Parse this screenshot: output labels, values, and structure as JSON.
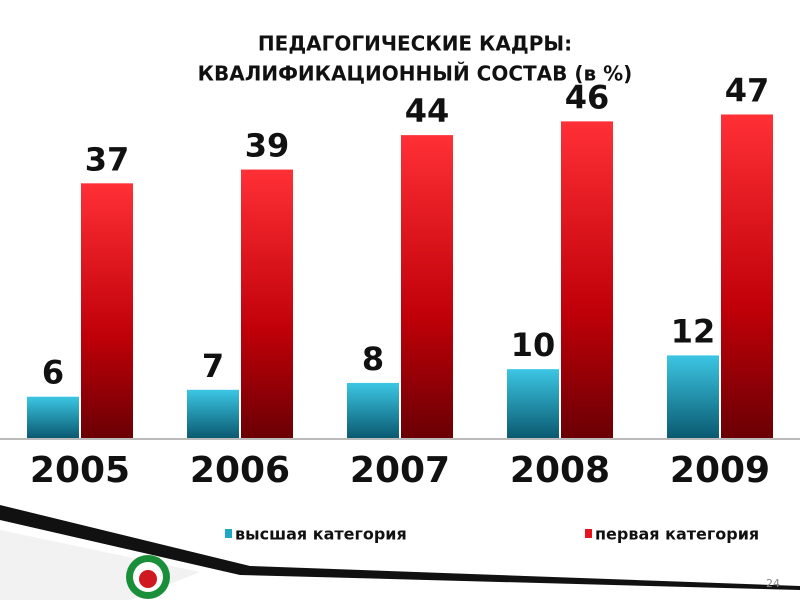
{
  "chart_data": {
    "type": "bar",
    "title": [
      "ПЕДАГОГИЧЕСКИЕ КАДРЫ:",
      "КВАЛИФИКАЦИОННЫЙ СОСТАВ (в %)"
    ],
    "categories": [
      "2005",
      "2006",
      "2007",
      "2008",
      "2009"
    ],
    "series": [
      {
        "name": "высшая категория",
        "color": "#1fa7c4",
        "values": [
          6,
          7,
          8,
          10,
          12
        ]
      },
      {
        "name": "первая категория",
        "color": "#e8141c",
        "values": [
          37,
          39,
          44,
          46,
          47
        ]
      }
    ],
    "ylim": [
      0,
      60
    ]
  },
  "slide_number": "24"
}
